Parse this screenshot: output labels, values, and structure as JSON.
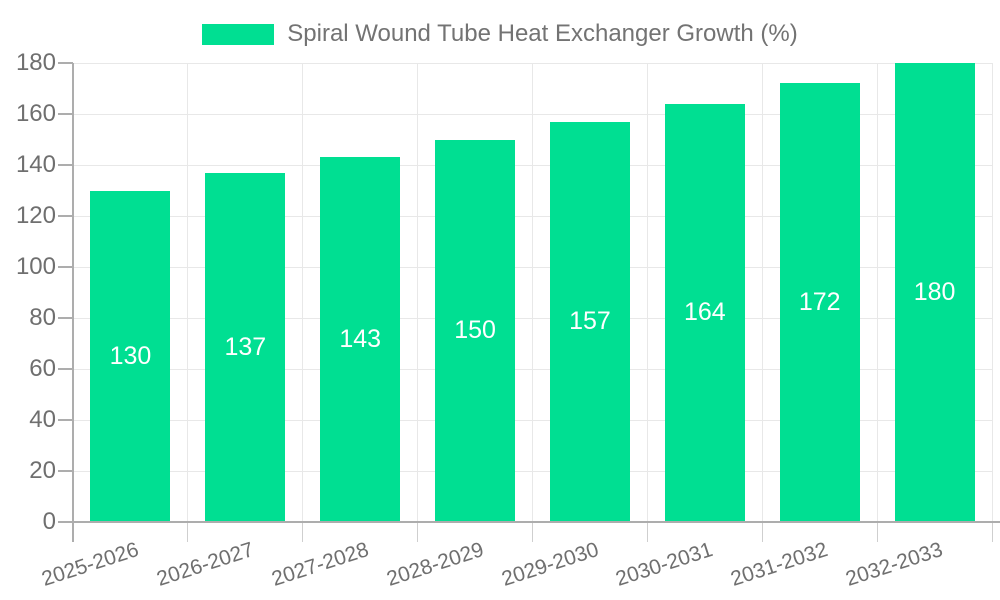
{
  "chart_data": {
    "type": "bar",
    "title": "Spiral Wound Tube Heat Exchanger Growth (%)",
    "categories": [
      "2025-2026",
      "2026-2027",
      "2027-2028",
      "2028-2029",
      "2029-2030",
      "2030-2031",
      "2031-2032",
      "2032-2033"
    ],
    "values": [
      130,
      137,
      143,
      150,
      157,
      164,
      172,
      180
    ],
    "xlabel": "",
    "ylabel": "",
    "ylim": [
      0,
      180
    ],
    "y_ticks": [
      0,
      20,
      40,
      60,
      80,
      100,
      120,
      140,
      160,
      180
    ],
    "grid": true,
    "legend_position": "top",
    "x_label_rotation_deg": -18,
    "colors": {
      "bar": "#00DF92",
      "bar_value_label": "#FFFFFF",
      "legend_text": "#737373",
      "axis_text": "#6F6F6F",
      "axis_line": "#ADADAD",
      "grid_line": "#E8E8E8",
      "tick_line": "#CFCFCF",
      "background": "#FFFFFF"
    }
  }
}
